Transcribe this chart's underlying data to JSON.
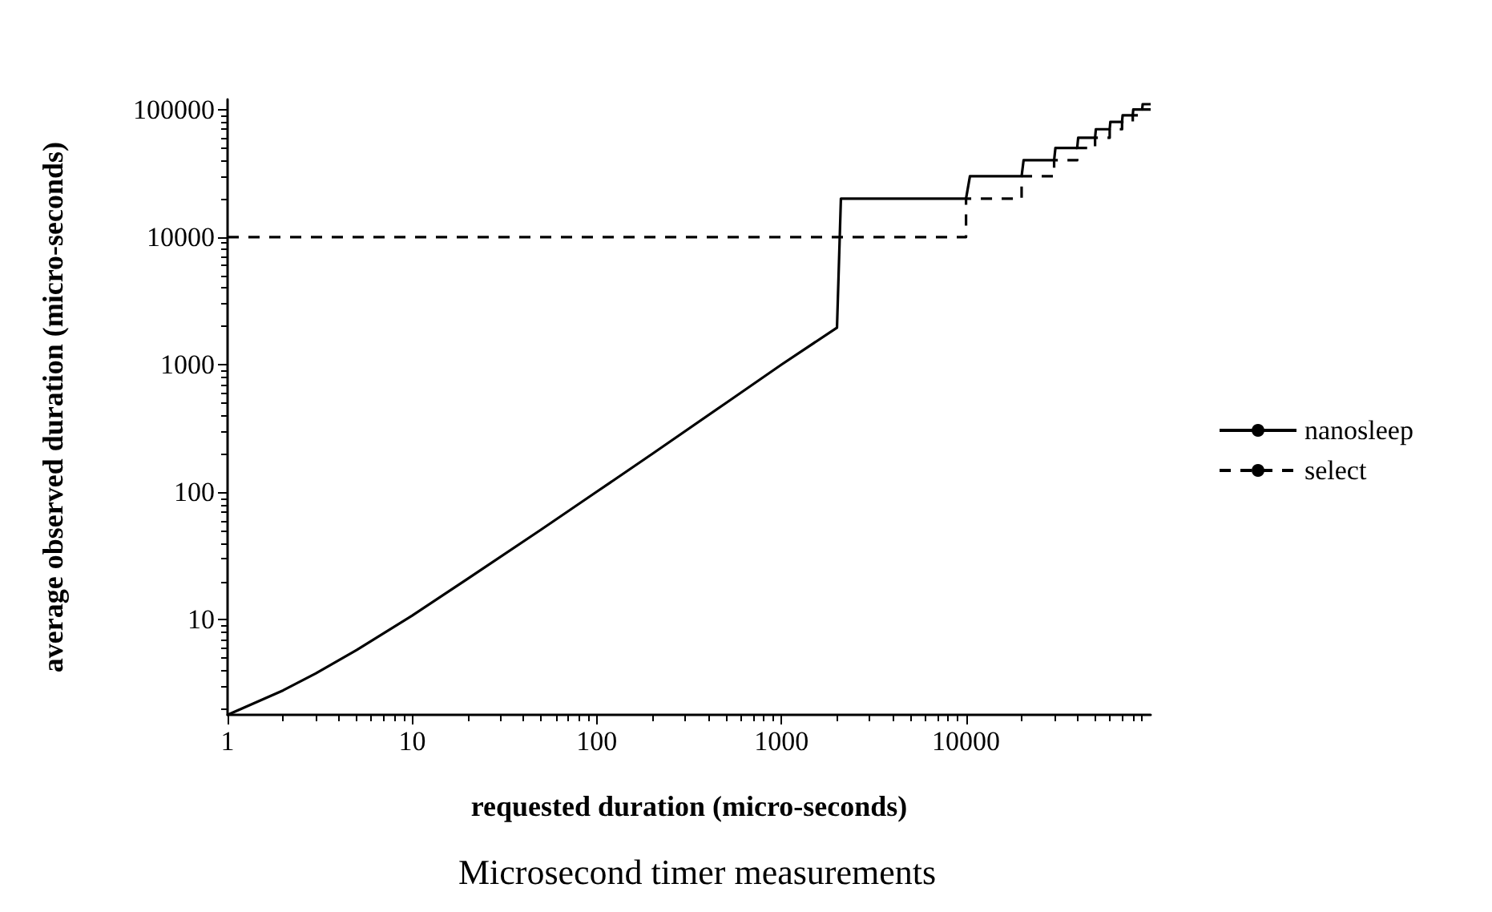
{
  "chart_data": {
    "type": "line",
    "title": "Microsecond timer measurements",
    "xlabel": "requested duration (micro-seconds)",
    "ylabel": "average observed duration (micro-seconds)",
    "log": "xy",
    "xlim": [
      1,
      100000
    ],
    "ylim": [
      1.8,
      120000
    ],
    "xticks": [
      1,
      10,
      100,
      1000,
      10000
    ],
    "yticks": [
      10,
      100,
      1000,
      10000,
      100000
    ],
    "grid": false,
    "legend": "right",
    "marker": "none",
    "series": [
      {
        "name": "nanosleep",
        "color": "#000000",
        "line_style": "solid",
        "x": [
          1,
          2,
          3,
          5,
          10,
          20,
          50,
          100,
          200,
          500,
          1000,
          2000,
          2100,
          10000,
          10500,
          20000,
          20500,
          30000,
          30500,
          40000,
          40500,
          50000,
          50500,
          60000,
          60500,
          70000,
          70500,
          80000,
          80500,
          90000,
          90500,
          100000
        ],
        "values": [
          1.8,
          2.8,
          3.8,
          5.8,
          10.8,
          21,
          51,
          101,
          200,
          500,
          1000,
          1950,
          20000,
          20000,
          30000,
          30000,
          40000,
          40000,
          50000,
          50000,
          60000,
          60000,
          70000,
          70000,
          80000,
          80000,
          90000,
          90000,
          100000,
          100000,
          110000,
          110000
        ]
      },
      {
        "name": "select",
        "color": "#000000",
        "line_style": "dashed",
        "x": [
          1,
          10000,
          10000,
          20000,
          20000,
          30000,
          30000,
          40000,
          40000,
          50000,
          50000,
          60000,
          60000,
          70000,
          70000,
          80000,
          80000,
          90000,
          90000,
          100000
        ],
        "values": [
          10000,
          10000,
          20000,
          20000,
          30000,
          30000,
          40000,
          40000,
          50000,
          50000,
          60000,
          60000,
          70000,
          70000,
          80000,
          80000,
          90000,
          90000,
          100000,
          100000
        ]
      }
    ]
  }
}
